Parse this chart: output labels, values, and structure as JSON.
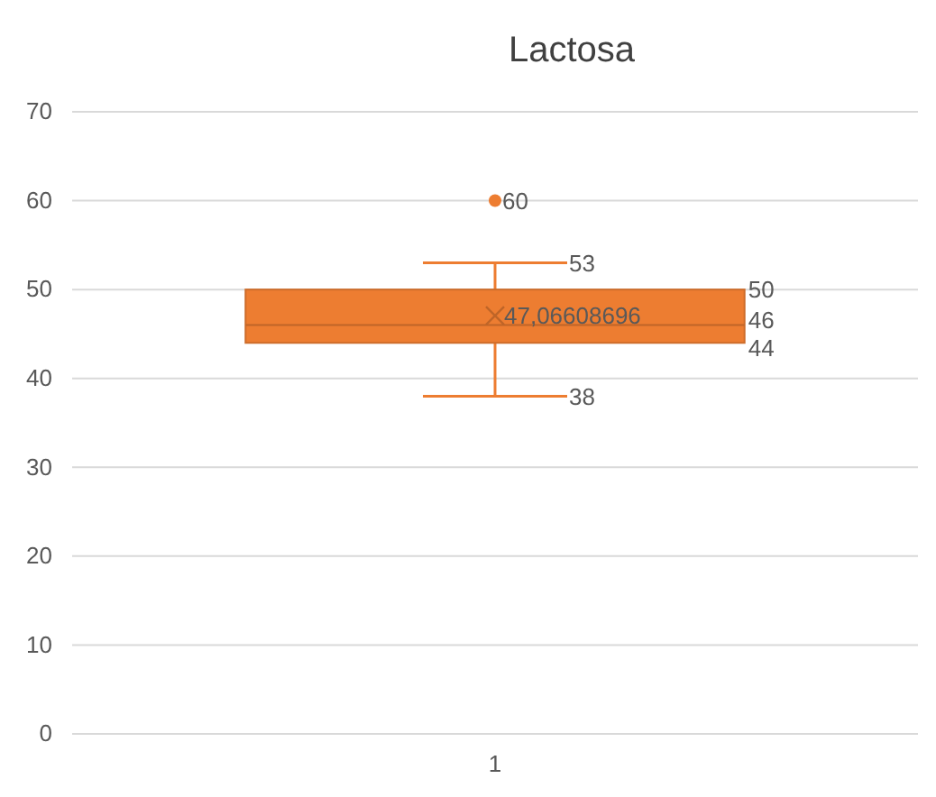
{
  "chart_data": {
    "type": "box",
    "title": "Lactosa",
    "categories": [
      "1"
    ],
    "series": [
      {
        "color": "#ed7d31",
        "boxes": [
          {
            "low": 38,
            "q1": 44,
            "median": 46,
            "q3": 50,
            "high": 53,
            "mean": 47.06608696,
            "outliers": [
              60
            ]
          }
        ]
      }
    ],
    "ylim": [
      0,
      70
    ],
    "yticks": [
      0,
      10,
      20,
      30,
      40,
      50,
      60,
      70
    ],
    "grid": "y",
    "data_labels": true,
    "annotations": [
      "60",
      "53",
      "50",
      "47,06608696",
      "46",
      "44",
      "38"
    ]
  }
}
